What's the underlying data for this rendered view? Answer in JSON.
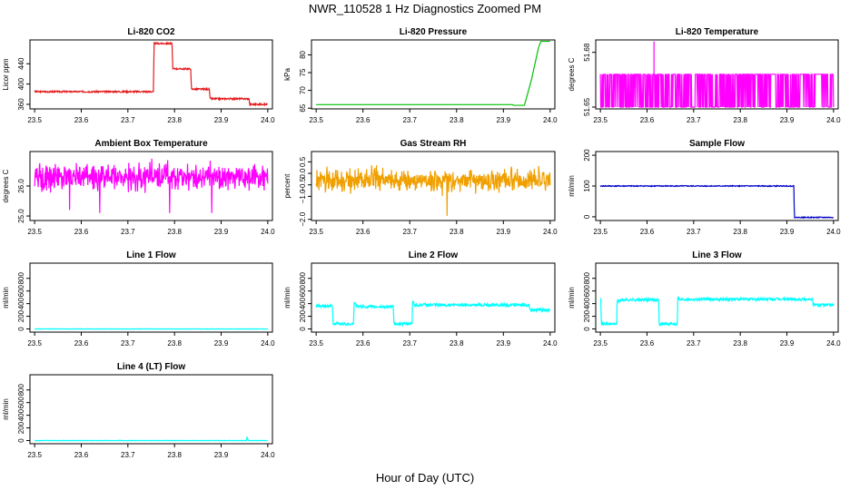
{
  "title": "NWR_110528  1 Hz Diagnostics Zoomed PM",
  "xlabel": "Hour of Day (UTC)",
  "chart_data": [
    {
      "type": "line",
      "title": "Li-820 CO2",
      "ylabel": "Licor ppm",
      "xlim": [
        23.49,
        24.01
      ],
      "ylim": [
        351,
        487
      ],
      "xticks": [
        23.5,
        23.6,
        23.7,
        23.8,
        23.9,
        24.0
      ],
      "xtick_labels": [
        "23.5",
        "23.6",
        "23.7",
        "23.8",
        "23.9",
        "24.0"
      ],
      "yticks": [
        360,
        400,
        440
      ],
      "ytick_labels": [
        "360",
        "400",
        "440"
      ],
      "color": "#e41a1c",
      "noise": 1.5,
      "noise_seed": 3,
      "series": [
        {
          "x": [
            23.5,
            23.755,
            23.756,
            23.795,
            23.796,
            23.835,
            23.836,
            23.875,
            23.876,
            23.96,
            23.961,
            24.0
          ],
          "y": [
            385,
            385,
            480,
            480,
            430,
            430,
            390,
            390,
            371,
            371,
            360,
            360
          ]
        }
      ]
    },
    {
      "type": "line",
      "title": "Li-820 Pressure",
      "ylabel": "kPa",
      "xlim": [
        23.49,
        24.01
      ],
      "ylim": [
        64.8,
        84.2
      ],
      "xticks": [
        23.5,
        23.6,
        23.7,
        23.8,
        23.9,
        24.0
      ],
      "xtick_labels": [
        "23.5",
        "23.6",
        "23.7",
        "23.8",
        "23.9",
        "24.0"
      ],
      "yticks": [
        65,
        70,
        75,
        80
      ],
      "ytick_labels": [
        "65",
        "70",
        "75",
        "80"
      ],
      "color": "#00c000",
      "noise": 0,
      "noise_seed": 1,
      "series": [
        {
          "x": [
            23.5,
            23.92,
            23.921,
            23.945,
            23.96,
            23.975,
            23.98,
            24.0
          ],
          "y": [
            66,
            66,
            65.8,
            65.8,
            73,
            82,
            83.8,
            83.8
          ]
        }
      ]
    },
    {
      "type": "line",
      "title": "Li-820 Temperature",
      "ylabel": "degrees C",
      "xlim": [
        23.49,
        24.01
      ],
      "ylim": [
        51.649,
        51.6868
      ],
      "xticks": [
        23.5,
        23.6,
        23.7,
        23.8,
        23.9,
        24.0
      ],
      "xtick_labels": [
        "23.5",
        "23.6",
        "23.7",
        "23.8",
        "23.9",
        "24.0"
      ],
      "yticks": [
        51.65,
        51.68
      ],
      "ytick_labels": [
        "51.65",
        "51.68"
      ],
      "color": "#ff00ff",
      "style": "toggle",
      "low": 51.65,
      "high": 51.668,
      "noise_seed": 11,
      "spikes": [
        {
          "x": 23.615,
          "y": 51.686
        }
      ],
      "gaps": [
        [
          23.865,
          23.875
        ],
        [
          23.96,
          23.975
        ],
        [
          23.86,
          23.862
        ]
      ]
    },
    {
      "type": "line",
      "title": "Ambient Box Temperature",
      "ylabel": "degrees C",
      "xlim": [
        23.49,
        24.01
      ],
      "ylim": [
        24.85,
        27.15
      ],
      "xticks": [
        23.5,
        23.6,
        23.7,
        23.8,
        23.9,
        24.0
      ],
      "xtick_labels": [
        "23.5",
        "23.6",
        "23.7",
        "23.8",
        "23.9",
        "24.0"
      ],
      "yticks": [
        25.0,
        26.0
      ],
      "ytick_labels": [
        "25.0",
        "26.0"
      ],
      "color": "#ff00ff",
      "style": "noise",
      "mean": 26.3,
      "sd": 0.3,
      "noise_seed": 21,
      "dips": [
        {
          "x": 23.64,
          "y": 25.1
        },
        {
          "x": 23.79,
          "y": 25.1
        },
        {
          "x": 23.88,
          "y": 25.1
        },
        {
          "x": 23.575,
          "y": 25.2
        }
      ]
    },
    {
      "type": "line",
      "title": "Gas Stream RH",
      "ylabel": "percent",
      "xlim": [
        23.49,
        24.01
      ],
      "ylim": [
        -2.05,
        0.95
      ],
      "xticks": [
        23.5,
        23.6,
        23.7,
        23.8,
        23.9,
        24.0
      ],
      "xtick_labels": [
        "23.5",
        "23.6",
        "23.7",
        "23.8",
        "23.9",
        "24.0"
      ],
      "yticks": [
        -2.0,
        -1.0,
        -0.5,
        0.0,
        0.5
      ],
      "ytick_labels": [
        "−2.0",
        "−1.0",
        "−0.5",
        "0.0",
        "0.5"
      ],
      "color": "#f0a000",
      "style": "noise",
      "mean": -0.3,
      "sd": 0.35,
      "noise_seed": 31,
      "dips": [
        {
          "x": 23.78,
          "y": -1.85
        }
      ]
    },
    {
      "type": "line",
      "title": "Sample Flow",
      "ylabel": "ml/min",
      "xlim": [
        23.49,
        24.01
      ],
      "ylim": [
        -12,
        212
      ],
      "xticks": [
        23.5,
        23.6,
        23.7,
        23.8,
        23.9,
        24.0
      ],
      "xtick_labels": [
        "23.5",
        "23.6",
        "23.7",
        "23.8",
        "23.9",
        "24.0"
      ],
      "yticks": [
        0,
        100,
        200
      ],
      "ytick_labels": [
        "0",
        "100",
        "200"
      ],
      "color": "#0000c8",
      "noise": 1.5,
      "noise_seed": 41,
      "series": [
        {
          "x": [
            23.5,
            23.915,
            23.916,
            24.0
          ],
          "y": [
            100,
            100,
            -2,
            -2
          ]
        }
      ]
    },
    {
      "type": "line",
      "title": "Line 1 Flow",
      "ylabel": "ml/min",
      "xlim": [
        23.49,
        24.01
      ],
      "ylim": [
        -50,
        1040
      ],
      "xticks": [
        23.5,
        23.6,
        23.7,
        23.8,
        23.9,
        24.0
      ],
      "xtick_labels": [
        "23.5",
        "23.6",
        "23.7",
        "23.8",
        "23.9",
        "24.0"
      ],
      "yticks": [
        0,
        200,
        400,
        600,
        800
      ],
      "ytick_labels": [
        "0",
        "200",
        "400",
        "600",
        "800"
      ],
      "color": "#00ffff",
      "noise": 3,
      "noise_seed": 51,
      "series": [
        {
          "x": [
            23.5,
            24.0
          ],
          "y": [
            0,
            0
          ]
        }
      ]
    },
    {
      "type": "line",
      "title": "Line 2 Flow",
      "ylabel": "ml/min",
      "xlim": [
        23.49,
        24.01
      ],
      "ylim": [
        -50,
        1040
      ],
      "xticks": [
        23.5,
        23.6,
        23.7,
        23.8,
        23.9,
        24.0
      ],
      "xtick_labels": [
        "23.5",
        "23.6",
        "23.7",
        "23.8",
        "23.9",
        "24.0"
      ],
      "yticks": [
        0,
        200,
        400,
        600,
        800
      ],
      "ytick_labels": [
        "0",
        "200",
        "400",
        "600",
        "800"
      ],
      "color": "#00ffff",
      "noise": 22,
      "noise_seed": 61,
      "series": [
        {
          "x": [
            23.5,
            23.535,
            23.536,
            23.58,
            23.581,
            23.585,
            23.59,
            23.665,
            23.666,
            23.705,
            23.706,
            23.71,
            23.715,
            23.955,
            23.956,
            24.0
          ],
          "y": [
            360,
            360,
            80,
            80,
            420,
            380,
            350,
            350,
            80,
            80,
            460,
            380,
            380,
            380,
            300,
            300
          ]
        }
      ]
    },
    {
      "type": "line",
      "title": "Line 3 Flow",
      "ylabel": "ml/min",
      "xlim": [
        23.49,
        24.01
      ],
      "ylim": [
        -50,
        1040
      ],
      "xticks": [
        23.5,
        23.6,
        23.7,
        23.8,
        23.9,
        24.0
      ],
      "xtick_labels": [
        "23.5",
        "23.6",
        "23.7",
        "23.8",
        "23.9",
        "24.0"
      ],
      "yticks": [
        0,
        200,
        400,
        600,
        800
      ],
      "ytick_labels": [
        "0",
        "200",
        "400",
        "600",
        "800"
      ],
      "color": "#00ffff",
      "noise": 22,
      "noise_seed": 71,
      "series": [
        {
          "x": [
            23.5,
            23.501,
            23.502,
            23.535,
            23.536,
            23.54,
            23.545,
            23.625,
            23.626,
            23.665,
            23.666,
            23.67,
            23.675,
            23.955,
            23.956,
            24.0
          ],
          "y": [
            500,
            500,
            80,
            80,
            460,
            440,
            460,
            460,
            80,
            80,
            500,
            460,
            470,
            470,
            380,
            380
          ]
        }
      ]
    },
    {
      "type": "line",
      "title": "Line 4 (LT) Flow",
      "ylabel": "ml/min",
      "xlim": [
        23.49,
        24.01
      ],
      "ylim": [
        -50,
        1040
      ],
      "xticks": [
        23.5,
        23.6,
        23.7,
        23.8,
        23.9,
        24.0
      ],
      "xtick_labels": [
        "23.5",
        "23.6",
        "23.7",
        "23.8",
        "23.9",
        "24.0"
      ],
      "yticks": [
        0,
        200,
        400,
        600,
        800
      ],
      "ytick_labels": [
        "0",
        "200",
        "400",
        "600",
        "800"
      ],
      "color": "#00ffff",
      "noise": 3,
      "noise_seed": 81,
      "series": [
        {
          "x": [
            23.5,
            23.954,
            23.956,
            23.958,
            24.0
          ],
          "y": [
            0,
            0,
            60,
            0,
            0
          ]
        }
      ]
    }
  ]
}
